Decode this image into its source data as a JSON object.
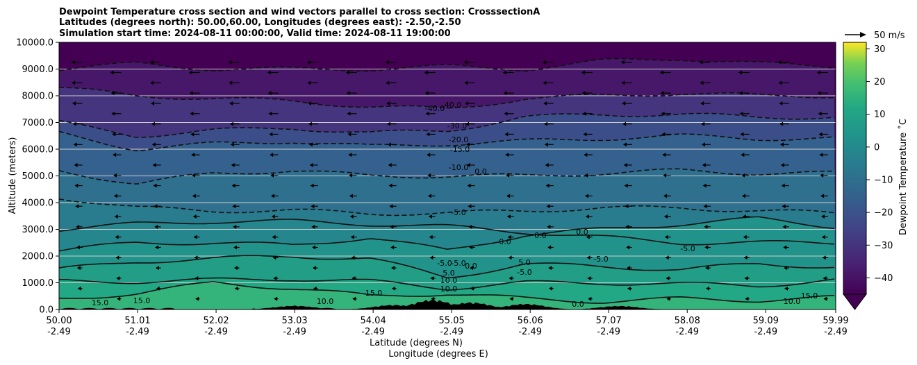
{
  "chart_data": {
    "type": "contour",
    "title_lines": [
      "Dewpoint Temperature cross section and wind vectors parallel to cross section: CrosssectionA",
      "Latitudes (degrees north): 50.00,60.00, Longitudes (degrees east): -2.50,-2.50",
      "Simulation start time: 2024-08-11 00:00:00, Valid time: 2024-08-11 19:00:00"
    ],
    "ylabel": "Altitude (meters)",
    "xlabel": "Latitude (degrees N)",
    "xlabel2": "Longitude (degrees E)",
    "ylim": [
      0,
      10000
    ],
    "yticks": [
      "0.0",
      "1000.0",
      "2000.0",
      "3000.0",
      "4000.0",
      "5000.0",
      "6000.0",
      "7000.0",
      "8000.0",
      "9000.0",
      "10000.0"
    ],
    "xlim": [
      50.0,
      59.99
    ],
    "xticks": [
      {
        "lat": "50.00",
        "lon": "-2.49"
      },
      {
        "lat": "51.01",
        "lon": "-2.49"
      },
      {
        "lat": "52.02",
        "lon": "-2.49"
      },
      {
        "lat": "53.03",
        "lon": "-2.49"
      },
      {
        "lat": "54.04",
        "lon": "-2.49"
      },
      {
        "lat": "55.05",
        "lon": "-2.49"
      },
      {
        "lat": "56.06",
        "lon": "-2.49"
      },
      {
        "lat": "57.07",
        "lon": "-2.49"
      },
      {
        "lat": "58.08",
        "lon": "-2.49"
      },
      {
        "lat": "59.09",
        "lon": "-2.49"
      },
      {
        "lat": "59.99",
        "lon": "-2.49"
      }
    ],
    "grid": "horizontal",
    "colorbar": {
      "label": "Dewpoint Temperature ˚C",
      "ticks": [
        "30",
        "20",
        "10",
        "0",
        "−10",
        "−20",
        "−30",
        "−40"
      ],
      "range": [
        -45,
        32
      ],
      "extend": "min",
      "colormap": "viridis"
    },
    "quiver_key": {
      "label": "50 m/s"
    },
    "contour_labels": [
      "-40.0",
      "40.0",
      "-30.0",
      "-20.0",
      "-15.0",
      "-10.0",
      "0.0",
      "-5.0",
      "0.0",
      "0.0",
      "0.0",
      "-5.0",
      "-5.0",
      "-5.0",
      "-5.0",
      "0.0",
      "5.0",
      "10.0",
      "10.0",
      "15.0",
      "15.0",
      "15.0",
      "10.0",
      "0.0",
      "5.0",
      "-5.0",
      "10.0",
      "15.0"
    ],
    "profile_heights_m": [
      {
        "dewpoint_c": -42,
        "altitude_m": [
          9000,
          9200,
          9000,
          9000,
          9000,
          9100,
          9000,
          9300,
          9400,
          9200,
          9100
        ]
      },
      {
        "dewpoint_c": -35,
        "altitude_m": [
          8300,
          8000,
          7900,
          7800,
          7600,
          7500,
          7900,
          8000,
          8100,
          8000,
          8000
        ]
      },
      {
        "dewpoint_c": -25,
        "altitude_m": [
          7000,
          6500,
          6700,
          6800,
          6600,
          6700,
          7200,
          7300,
          7300,
          7200,
          7200
        ]
      },
      {
        "dewpoint_c": -18,
        "altitude_m": [
          6600,
          6000,
          6200,
          6300,
          6100,
          6200,
          6300,
          6400,
          6500,
          6400,
          6400
        ]
      },
      {
        "dewpoint_c": -12,
        "altitude_m": [
          5200,
          4700,
          5100,
          5200,
          5000,
          5000,
          5000,
          5100,
          5200,
          5100,
          5100
        ]
      },
      {
        "dewpoint_c": -7,
        "altitude_m": [
          4200,
          3800,
          3700,
          3700,
          3600,
          3600,
          3700,
          3800,
          3800,
          3700,
          3600
        ]
      },
      {
        "dewpoint_c": -3,
        "altitude_m": [
          3000,
          3200,
          3300,
          3300,
          3200,
          3100,
          2900,
          2700,
          2500,
          2500,
          2500
        ]
      },
      {
        "dewpoint_c": 1,
        "altitude_m": [
          2200,
          2500,
          2500,
          2400,
          2700,
          2200,
          2800,
          3000,
          3200,
          3400,
          3100
        ]
      },
      {
        "dewpoint_c": 6,
        "altitude_m": [
          1500,
          1800,
          1900,
          2000,
          1900,
          1200,
          1700,
          1600,
          1500,
          1700,
          1600
        ]
      },
      {
        "dewpoint_c": 10,
        "altitude_m": [
          1050,
          1050,
          1100,
          1150,
          1050,
          800,
          1000,
          1000,
          950,
          900,
          1100
        ]
      },
      {
        "dewpoint_c": 14,
        "altitude_m": [
          400,
          600,
          1000,
          800,
          500,
          600,
          400,
          300,
          400,
          350,
          450
        ]
      }
    ],
    "wind": {
      "direction": "toward south along cross section aloft, weak near surface",
      "max_speed_approx_m_s": 15
    }
  }
}
